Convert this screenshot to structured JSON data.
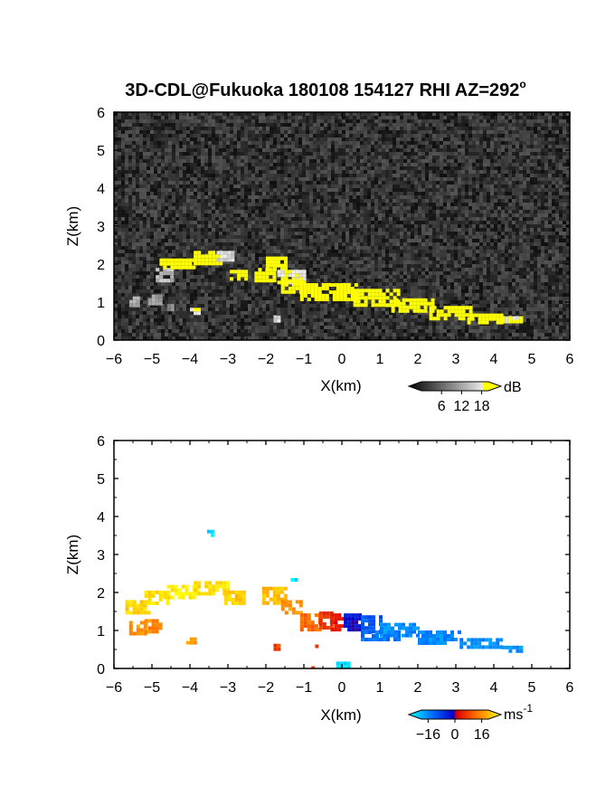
{
  "title": "3D-CDL@Fukuoka 180108 154127 RHI AZ=292",
  "title_degree": "o",
  "chart_data": [
    {
      "type": "heatmap",
      "name": "reflectivity",
      "xlabel": "X(km)",
      "ylabel": "Z(km)",
      "xlim": [
        -6,
        6
      ],
      "ylim": [
        0,
        6
      ],
      "xticks": [
        "-6",
        "-5",
        "-4",
        "-3",
        "-2",
        "-1",
        "0",
        "1",
        "2",
        "3",
        "4",
        "5",
        "6"
      ],
      "yticks": [
        "0",
        "1",
        "2",
        "3",
        "4",
        "5",
        "6"
      ],
      "background": "noise",
      "colorbar": {
        "unit": "dB",
        "ticks": [
          "6",
          "12",
          "18"
        ],
        "range": [
          0,
          20
        ]
      },
      "regions": [
        {
          "x": -4.9,
          "y": 1.55,
          "w": 0.45,
          "h": 0.35,
          "v": 12
        },
        {
          "x": -5.6,
          "y": 0.95,
          "w": 0.25,
          "h": 0.2,
          "v": 10
        },
        {
          "x": -5.1,
          "y": 0.95,
          "w": 0.35,
          "h": 0.25,
          "v": 10
        },
        {
          "x": -4.8,
          "y": 1.9,
          "w": 0.9,
          "h": 0.25,
          "v": 20
        },
        {
          "x": -3.9,
          "y": 2.05,
          "w": 0.8,
          "h": 0.3,
          "v": 20
        },
        {
          "x": -3.3,
          "y": 2.1,
          "w": 0.4,
          "h": 0.25,
          "v": 14
        },
        {
          "x": -2.95,
          "y": 1.6,
          "w": 0.4,
          "h": 0.25,
          "v": 20
        },
        {
          "x": -2.3,
          "y": 1.6,
          "w": 0.5,
          "h": 0.3,
          "v": 20
        },
        {
          "x": -2.0,
          "y": 1.85,
          "w": 0.5,
          "h": 0.35,
          "v": 20
        },
        {
          "x": -1.7,
          "y": 1.55,
          "w": 0.7,
          "h": 0.3,
          "v": 16
        },
        {
          "x": -1.6,
          "y": 1.25,
          "w": 0.5,
          "h": 0.35,
          "v": 20
        },
        {
          "x": -1.1,
          "y": 1.05,
          "w": 1.5,
          "h": 0.45,
          "v": 20
        },
        {
          "x": 0.3,
          "y": 0.95,
          "w": 1.2,
          "h": 0.4,
          "v": 20
        },
        {
          "x": 1.3,
          "y": 0.75,
          "w": 1.1,
          "h": 0.35,
          "v": 20
        },
        {
          "x": 2.3,
          "y": 0.6,
          "w": 1.1,
          "h": 0.3,
          "v": 20
        },
        {
          "x": 3.3,
          "y": 0.5,
          "w": 0.9,
          "h": 0.2,
          "v": 20
        },
        {
          "x": 4.2,
          "y": 0.48,
          "w": 0.55,
          "h": 0.15,
          "v": 16
        },
        {
          "x": -4.6,
          "y": 0.8,
          "w": 0.2,
          "h": 0.15,
          "v": 8
        },
        {
          "x": -4.0,
          "y": 0.75,
          "w": 0.2,
          "h": 0.1,
          "v": 16
        },
        {
          "x": -1.8,
          "y": 0.55,
          "w": 0.15,
          "h": 0.1,
          "v": 14
        }
      ]
    },
    {
      "type": "heatmap",
      "name": "radial-velocity",
      "xlabel": "X(km)",
      "ylabel": "Z(km)",
      "xlim": [
        -6,
        6
      ],
      "ylim": [
        0,
        6
      ],
      "xticks": [
        "-6",
        "-5",
        "-4",
        "-3",
        "-2",
        "-1",
        "0",
        "1",
        "2",
        "3",
        "4",
        "5",
        "6"
      ],
      "yticks": [
        "0",
        "1",
        "2",
        "3",
        "4",
        "5",
        "6"
      ],
      "background": "white",
      "colorbar": {
        "unit": "ms",
        "unit_exponent": "-1",
        "ticks": [
          "−16",
          "0",
          "16"
        ],
        "range": [
          -20,
          20
        ]
      },
      "regions": [
        {
          "x": -5.7,
          "y": 1.45,
          "w": 0.6,
          "h": 0.35,
          "v": 17
        },
        {
          "x": -5.2,
          "y": 1.7,
          "w": 0.6,
          "h": 0.35,
          "v": 18
        },
        {
          "x": -4.7,
          "y": 1.9,
          "w": 0.9,
          "h": 0.3,
          "v": 19
        },
        {
          "x": -3.9,
          "y": 2.0,
          "w": 0.9,
          "h": 0.3,
          "v": 18
        },
        {
          "x": -3.1,
          "y": 1.75,
          "w": 0.5,
          "h": 0.3,
          "v": 16
        },
        {
          "x": -5.6,
          "y": 0.9,
          "w": 0.4,
          "h": 0.35,
          "v": 12
        },
        {
          "x": -5.2,
          "y": 1.0,
          "w": 0.4,
          "h": 0.3,
          "v": 11
        },
        {
          "x": -4.1,
          "y": 0.72,
          "w": 0.2,
          "h": 0.1,
          "v": 12
        },
        {
          "x": -2.1,
          "y": 1.7,
          "w": 0.6,
          "h": 0.45,
          "v": 15
        },
        {
          "x": -1.6,
          "y": 1.45,
          "w": 0.5,
          "h": 0.35,
          "v": 12
        },
        {
          "x": -1.1,
          "y": 1.05,
          "w": 0.5,
          "h": 0.4,
          "v": 9
        },
        {
          "x": -0.6,
          "y": 1.1,
          "w": 0.35,
          "h": 0.4,
          "v": 5
        },
        {
          "x": -0.3,
          "y": 1.05,
          "w": 0.35,
          "h": 0.4,
          "v": 2
        },
        {
          "x": 0.05,
          "y": 1.05,
          "w": 0.45,
          "h": 0.4,
          "v": -2
        },
        {
          "x": 0.5,
          "y": 0.95,
          "w": 0.5,
          "h": 0.45,
          "v": -8
        },
        {
          "x": 0.5,
          "y": 0.75,
          "w": 1.0,
          "h": 0.25,
          "v": -10
        },
        {
          "x": 1.0,
          "y": 0.85,
          "w": 1.0,
          "h": 0.35,
          "v": -12
        },
        {
          "x": 2.0,
          "y": 0.7,
          "w": 1.1,
          "h": 0.3,
          "v": -12
        },
        {
          "x": 3.1,
          "y": 0.55,
          "w": 1.1,
          "h": 0.25,
          "v": -12
        },
        {
          "x": 4.2,
          "y": 0.45,
          "w": 0.55,
          "h": 0.15,
          "v": -13
        },
        {
          "x": -3.55,
          "y": 3.55,
          "w": 0.15,
          "h": 0.1,
          "v": -18
        },
        {
          "x": -1.35,
          "y": 2.3,
          "w": 0.1,
          "h": 0.08,
          "v": -18
        },
        {
          "x": -0.15,
          "y": 0.0,
          "w": 0.35,
          "h": 0.18,
          "v": -18
        },
        {
          "x": -1.8,
          "y": 0.55,
          "w": 0.15,
          "h": 0.1,
          "v": 6
        },
        {
          "x": -0.8,
          "y": 0.55,
          "w": 0.1,
          "h": 0.08,
          "v": 6
        },
        {
          "x": -0.9,
          "y": 0.0,
          "w": 0.1,
          "h": 0.06,
          "v": 5
        }
      ]
    }
  ]
}
